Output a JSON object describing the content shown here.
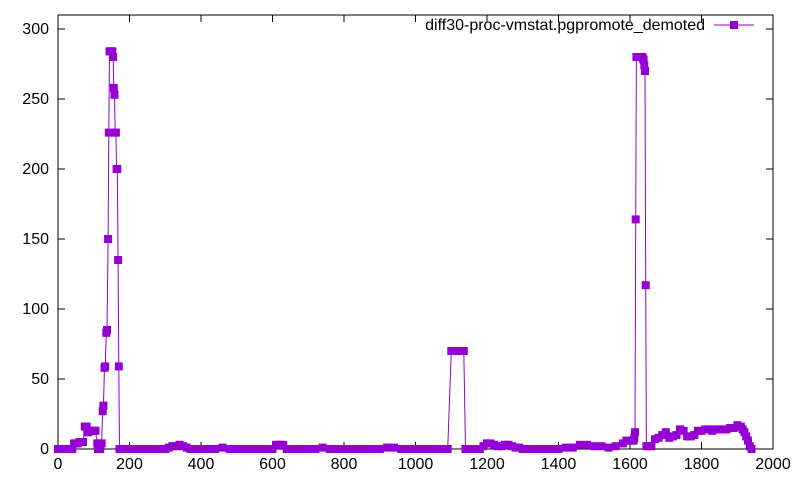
{
  "chart_data": {
    "type": "line",
    "title": "",
    "xlabel": "",
    "ylabel": "",
    "xlim": [
      0,
      2000
    ],
    "ylim": [
      0,
      310
    ],
    "x_ticks": [
      0,
      200,
      400,
      600,
      800,
      1000,
      1200,
      1400,
      1600,
      1800,
      2000
    ],
    "y_ticks": [
      0,
      50,
      100,
      150,
      200,
      250,
      300
    ],
    "grid": false,
    "legend_position": "top-right",
    "series": [
      {
        "name": "diff30-proc-vmstat.pgpromote_demoted",
        "color": "#9400d3",
        "marker": "square",
        "points": [
          [
            0,
            0
          ],
          [
            10,
            0
          ],
          [
            20,
            0
          ],
          [
            30,
            0
          ],
          [
            40,
            0
          ],
          [
            45,
            4
          ],
          [
            50,
            4
          ],
          [
            55,
            4
          ],
          [
            60,
            5
          ],
          [
            65,
            5
          ],
          [
            70,
            5
          ],
          [
            75,
            16
          ],
          [
            80,
            16
          ],
          [
            82,
            12
          ],
          [
            85,
            12
          ],
          [
            88,
            13
          ],
          [
            92,
            13
          ],
          [
            96,
            13
          ],
          [
            100,
            13
          ],
          [
            105,
            13
          ],
          [
            110,
            4
          ],
          [
            112,
            0
          ],
          [
            115,
            0
          ],
          [
            118,
            0
          ],
          [
            120,
            4
          ],
          [
            122,
            4
          ],
          [
            125,
            27
          ],
          [
            127,
            31
          ],
          [
            130,
            58
          ],
          [
            132,
            59
          ],
          [
            135,
            83
          ],
          [
            137,
            85
          ],
          [
            140,
            150
          ],
          [
            142,
            226
          ],
          [
            144,
            284
          ],
          [
            146,
            284
          ],
          [
            148,
            284
          ],
          [
            150,
            284
          ],
          [
            152,
            284
          ],
          [
            154,
            280
          ],
          [
            156,
            258
          ],
          [
            158,
            253
          ],
          [
            160,
            226
          ],
          [
            162,
            226
          ],
          [
            164,
            200
          ],
          [
            166,
            200
          ],
          [
            168,
            135
          ],
          [
            170,
            59
          ],
          [
            172,
            0
          ],
          [
            180,
            0
          ],
          [
            190,
            0
          ],
          [
            200,
            0
          ],
          [
            220,
            0
          ],
          [
            240,
            0
          ],
          [
            260,
            0
          ],
          [
            280,
            0
          ],
          [
            300,
            0
          ],
          [
            310,
            1
          ],
          [
            320,
            2
          ],
          [
            330,
            2
          ],
          [
            340,
            3
          ],
          [
            350,
            2
          ],
          [
            360,
            1
          ],
          [
            370,
            0
          ],
          [
            380,
            0
          ],
          [
            400,
            0
          ],
          [
            420,
            0
          ],
          [
            440,
            0
          ],
          [
            460,
            1
          ],
          [
            480,
            0
          ],
          [
            500,
            0
          ],
          [
            520,
            0
          ],
          [
            540,
            0
          ],
          [
            560,
            0
          ],
          [
            580,
            0
          ],
          [
            600,
            0
          ],
          [
            610,
            3
          ],
          [
            620,
            3
          ],
          [
            630,
            3
          ],
          [
            640,
            0
          ],
          [
            660,
            0
          ],
          [
            680,
            0
          ],
          [
            700,
            0
          ],
          [
            720,
            0
          ],
          [
            740,
            1
          ],
          [
            760,
            0
          ],
          [
            780,
            0
          ],
          [
            800,
            0
          ],
          [
            820,
            0
          ],
          [
            840,
            0
          ],
          [
            860,
            0
          ],
          [
            880,
            0
          ],
          [
            900,
            0
          ],
          [
            920,
            1
          ],
          [
            940,
            1
          ],
          [
            960,
            0
          ],
          [
            980,
            0
          ],
          [
            1000,
            0
          ],
          [
            1020,
            0
          ],
          [
            1040,
            0
          ],
          [
            1060,
            0
          ],
          [
            1080,
            0
          ],
          [
            1090,
            0
          ],
          [
            1100,
            70
          ],
          [
            1110,
            70
          ],
          [
            1115,
            70
          ],
          [
            1120,
            70
          ],
          [
            1125,
            70
          ],
          [
            1130,
            70
          ],
          [
            1135,
            70
          ],
          [
            1140,
            0
          ],
          [
            1150,
            0
          ],
          [
            1160,
            0
          ],
          [
            1170,
            0
          ],
          [
            1180,
            0
          ],
          [
            1190,
            2
          ],
          [
            1200,
            4
          ],
          [
            1210,
            4
          ],
          [
            1220,
            3
          ],
          [
            1230,
            2
          ],
          [
            1240,
            2
          ],
          [
            1250,
            3
          ],
          [
            1260,
            3
          ],
          [
            1270,
            2
          ],
          [
            1280,
            1
          ],
          [
            1290,
            1
          ],
          [
            1300,
            0
          ],
          [
            1320,
            0
          ],
          [
            1340,
            0
          ],
          [
            1360,
            0
          ],
          [
            1380,
            0
          ],
          [
            1400,
            0
          ],
          [
            1420,
            1
          ],
          [
            1440,
            1
          ],
          [
            1460,
            3
          ],
          [
            1480,
            3
          ],
          [
            1500,
            2
          ],
          [
            1520,
            2
          ],
          [
            1540,
            1
          ],
          [
            1560,
            2
          ],
          [
            1580,
            4
          ],
          [
            1590,
            6
          ],
          [
            1600,
            6
          ],
          [
            1605,
            6
          ],
          [
            1610,
            6
          ],
          [
            1612,
            8
          ],
          [
            1614,
            12
          ],
          [
            1616,
            164
          ],
          [
            1618,
            280
          ],
          [
            1620,
            280
          ],
          [
            1625,
            280
          ],
          [
            1630,
            280
          ],
          [
            1634,
            280
          ],
          [
            1636,
            279
          ],
          [
            1638,
            278
          ],
          [
            1640,
            274
          ],
          [
            1642,
            270
          ],
          [
            1644,
            117
          ],
          [
            1646,
            2
          ],
          [
            1650,
            2
          ],
          [
            1660,
            2
          ],
          [
            1670,
            7
          ],
          [
            1680,
            8
          ],
          [
            1690,
            10
          ],
          [
            1700,
            12
          ],
          [
            1710,
            8
          ],
          [
            1720,
            9
          ],
          [
            1730,
            10
          ],
          [
            1740,
            14
          ],
          [
            1750,
            13
          ],
          [
            1760,
            9
          ],
          [
            1770,
            9
          ],
          [
            1780,
            10
          ],
          [
            1790,
            13
          ],
          [
            1800,
            13
          ],
          [
            1810,
            14
          ],
          [
            1820,
            14
          ],
          [
            1830,
            13
          ],
          [
            1840,
            14
          ],
          [
            1850,
            14
          ],
          [
            1860,
            14
          ],
          [
            1870,
            14
          ],
          [
            1880,
            15
          ],
          [
            1890,
            15
          ],
          [
            1900,
            17
          ],
          [
            1910,
            16
          ],
          [
            1915,
            14
          ],
          [
            1920,
            12
          ],
          [
            1925,
            9
          ],
          [
            1930,
            6
          ],
          [
            1935,
            2
          ],
          [
            1940,
            0
          ]
        ]
      }
    ]
  }
}
